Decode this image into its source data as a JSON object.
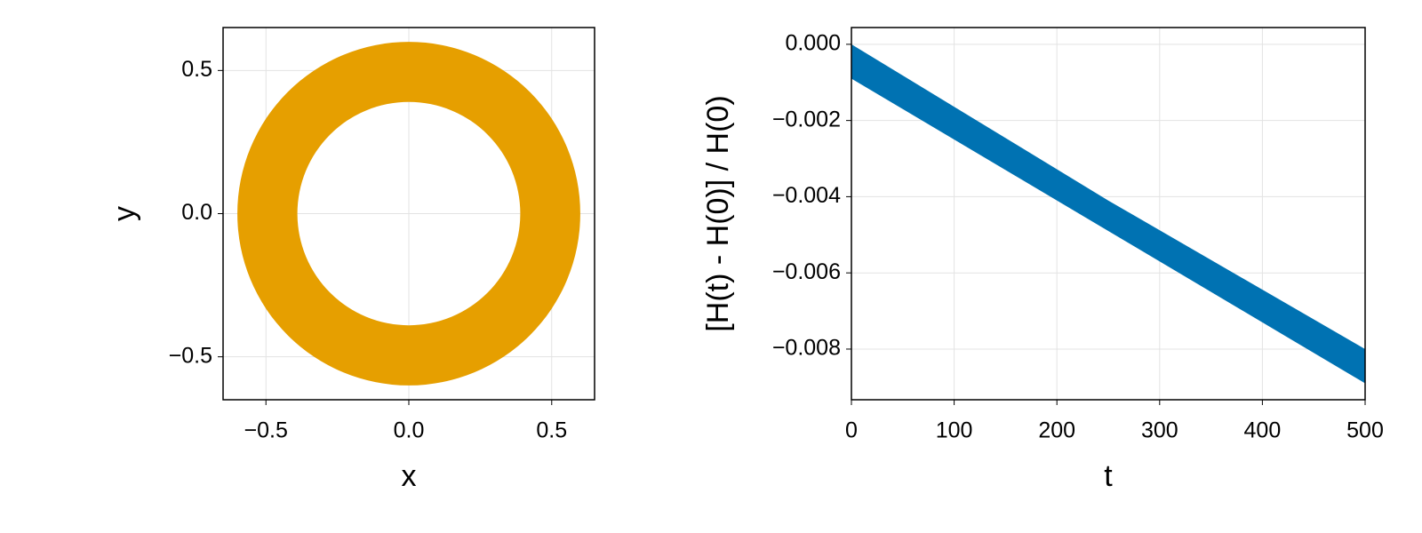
{
  "chart_data": [
    {
      "type": "ring",
      "x_label": "x",
      "y_label": "y",
      "center": [
        0,
        0
      ],
      "inner_radius": 0.39,
      "outer_radius": 0.6,
      "color": "#e69f00",
      "xlim": [
        -0.65,
        0.65
      ],
      "ylim": [
        -0.65,
        0.65
      ],
      "xticks": [
        {
          "value": -0.5,
          "label": "−0.5"
        },
        {
          "value": 0,
          "label": "0.0"
        },
        0.5
      ],
      "yticks": [
        {
          "value": -0.5,
          "label": "−0.5"
        },
        {
          "value": 0,
          "label": "0.0"
        },
        0.5
      ],
      "grid": true
    },
    {
      "type": "band",
      "x_label": "t",
      "y_label": "[H(t) - H(0)] / H(0)",
      "x": [
        0,
        250,
        500
      ],
      "series": [
        {
          "color": "#0072b2",
          "upper": [
            0,
            -0.0041,
            -0.008
          ],
          "lower": [
            -0.0009,
            -0.0049,
            -0.0089
          ]
        }
      ],
      "xlim": [
        0,
        500
      ],
      "ylim": [
        -0.00933,
        0.00044
      ],
      "xticks": [
        0,
        100,
        200,
        300,
        400,
        500
      ],
      "yticks": [
        {
          "value": 0,
          "label": "0.000"
        },
        {
          "value": -0.002,
          "label": "−0.002"
        },
        {
          "value": -0.004,
          "label": "−0.004"
        },
        {
          "value": -0.006,
          "label": "−0.006"
        },
        {
          "value": -0.008,
          "label": "−0.008"
        }
      ],
      "grid": true
    }
  ]
}
